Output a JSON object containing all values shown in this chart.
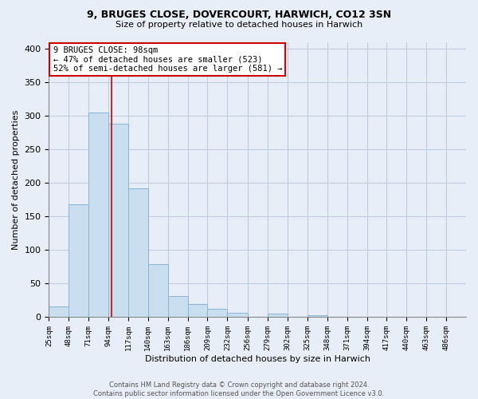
{
  "title1": "9, BRUGES CLOSE, DOVERCOURT, HARWICH, CO12 3SN",
  "title2": "Size of property relative to detached houses in Harwich",
  "xlabel": "Distribution of detached houses by size in Harwich",
  "ylabel": "Number of detached properties",
  "bar_edges": [
    25,
    48,
    71,
    94,
    117,
    140,
    163,
    186,
    209,
    232,
    256,
    279,
    302,
    325,
    348,
    371,
    394,
    417,
    440,
    463,
    486
  ],
  "bar_heights": [
    16,
    168,
    305,
    288,
    192,
    79,
    32,
    19,
    13,
    7,
    0,
    5,
    0,
    3,
    0,
    0,
    0,
    1,
    0,
    1
  ],
  "property_line_x": 98,
  "bar_color": "#c9dff0",
  "bar_edge_color": "#8ab4d4",
  "line_color": "#cc0000",
  "annotation_line1": "9 BRUGES CLOSE: 98sqm",
  "annotation_line2": "← 47% of detached houses are smaller (523)",
  "annotation_line3": "52% of semi-detached houses are larger (581) →",
  "annotation_box_color": "#ffffff",
  "annotation_box_edge_color": "#cc0000",
  "ylim": [
    0,
    410
  ],
  "yticks": [
    0,
    50,
    100,
    150,
    200,
    250,
    300,
    350,
    400
  ],
  "tick_labels": [
    "25sqm",
    "48sqm",
    "71sqm",
    "94sqm",
    "117sqm",
    "140sqm",
    "163sqm",
    "186sqm",
    "209sqm",
    "232sqm",
    "256sqm",
    "279sqm",
    "302sqm",
    "325sqm",
    "348sqm",
    "371sqm",
    "394sqm",
    "417sqm",
    "440sqm",
    "463sqm",
    "486sqm"
  ],
  "footer_text": "Contains HM Land Registry data © Crown copyright and database right 2024.\nContains public sector information licensed under the Open Government Licence v3.0.",
  "background_color": "#e8eef8",
  "plot_bg_color": "#e8eef8",
  "grid_color": "#c0cce0"
}
